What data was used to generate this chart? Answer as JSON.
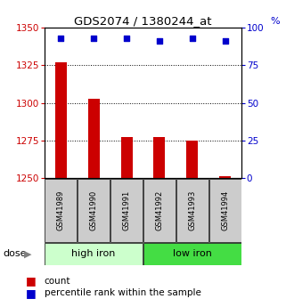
{
  "title": "GDS2074 / 1380244_at",
  "categories": [
    "GSM41989",
    "GSM41990",
    "GSM41991",
    "GSM41992",
    "GSM41993",
    "GSM41994"
  ],
  "bar_values": [
    1327,
    1303,
    1277,
    1277,
    1275,
    1251
  ],
  "percentile_values": [
    93,
    93,
    93,
    91,
    93,
    91
  ],
  "bar_base": 1250,
  "ylim_left": [
    1250,
    1350
  ],
  "ylim_right": [
    0,
    100
  ],
  "yticks_left": [
    1250,
    1275,
    1300,
    1325,
    1350
  ],
  "yticks_right": [
    0,
    25,
    50,
    75,
    100
  ],
  "bar_color": "#cc0000",
  "square_color": "#0000cc",
  "groups": [
    {
      "label": "high iron",
      "indices": [
        0,
        1,
        2
      ],
      "color": "#ccffcc"
    },
    {
      "label": "low iron",
      "indices": [
        3,
        4,
        5
      ],
      "color": "#44dd44"
    }
  ],
  "dose_label": "dose",
  "legend_count_label": "count",
  "legend_percentile_label": "percentile rank within the sample",
  "tick_label_color_left": "#cc0000",
  "tick_label_color_right": "#0000cc",
  "bar_width": 0.35,
  "fig_width": 3.21,
  "fig_height": 3.45,
  "dpi": 100
}
